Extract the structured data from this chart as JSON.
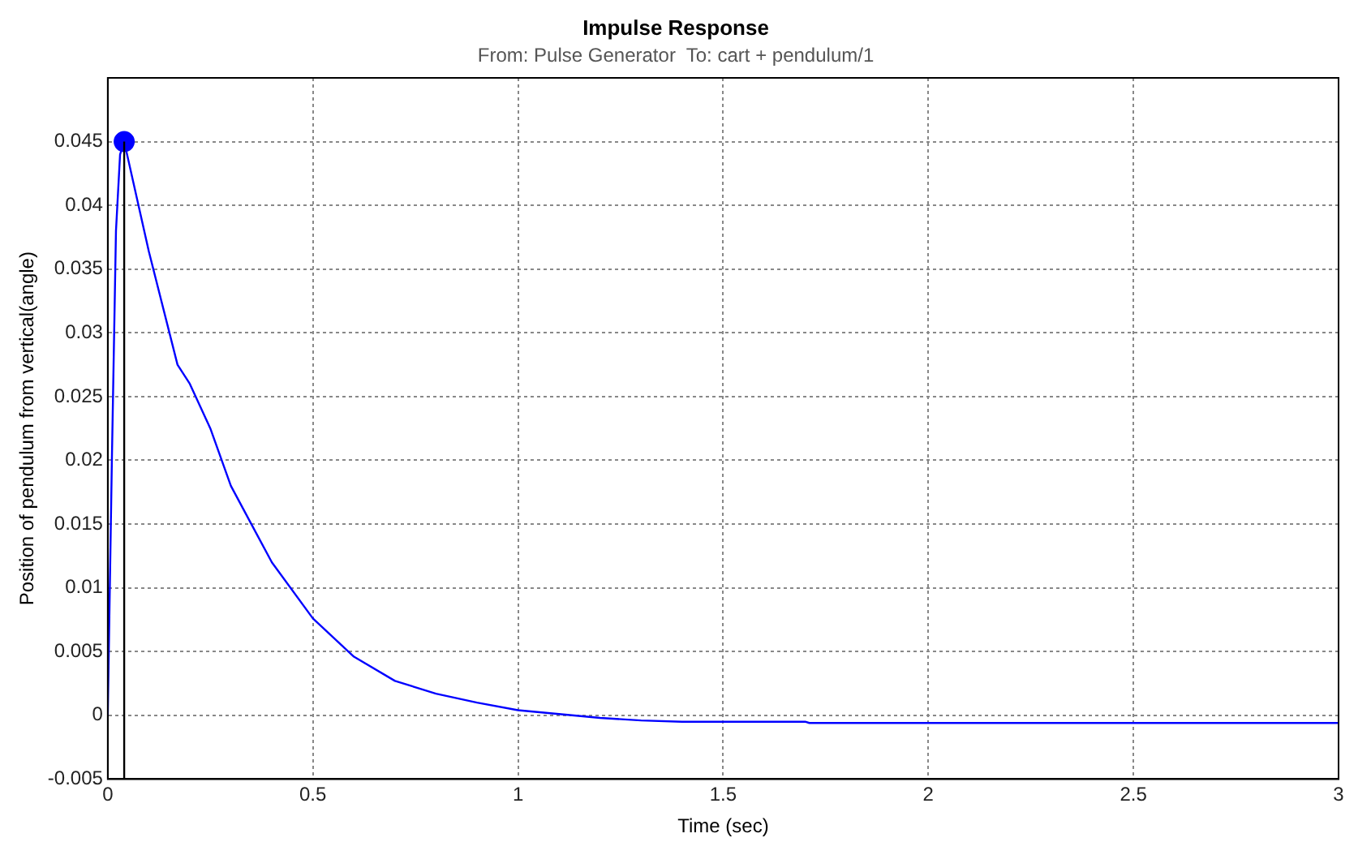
{
  "chart_data": {
    "type": "line",
    "title": "Impulse Response",
    "subtitle": "From: Pulse Generator  To: cart + pendulum/1",
    "xlabel": "Time (sec)",
    "ylabel": "Position of pendulum from vertical(angle)",
    "xlim": [
      0,
      3
    ],
    "xticks": [
      0,
      0.5,
      1,
      1.5,
      2,
      2.5,
      3
    ],
    "ylim": [
      -0.005,
      0.05
    ],
    "yticks": [
      -0.005,
      0,
      0.005,
      0.01,
      0.015,
      0.02,
      0.025,
      0.03,
      0.035,
      0.04,
      0.045
    ],
    "grid": true,
    "legend": false,
    "series": [
      {
        "color": "#0000ff",
        "marker": "none",
        "x": [
          0,
          0.01,
          0.02,
          0.03,
          0.04,
          0.1,
          0.17,
          0.2,
          0.25,
          0.3,
          0.35,
          0.4,
          0.5,
          0.6,
          0.7,
          0.8,
          0.9,
          1.0,
          1.1,
          1.2,
          1.3,
          1.4,
          1.7,
          1.71,
          2,
          2.5,
          3
        ],
        "values": [
          0,
          0.02,
          0.038,
          0.044,
          0.045,
          0.0364,
          0.0275,
          0.026,
          0.0225,
          0.018,
          0.015,
          0.012,
          0.0076,
          0.0046,
          0.0027,
          0.0017,
          0.001,
          0.0004,
          0.0001,
          -0.0002,
          -0.0004,
          -0.0005,
          -0.0005,
          -0.0006,
          -0.0006,
          -0.0006,
          -0.0006
        ]
      },
      {
        "type": "scatter",
        "color": "#0000ff",
        "marker": "circle",
        "x": [
          0.04
        ],
        "values": [
          0.045
        ]
      }
    ],
    "ref_lines": [
      {
        "axis": "x",
        "value": 0.04,
        "color": "#000000"
      }
    ]
  }
}
